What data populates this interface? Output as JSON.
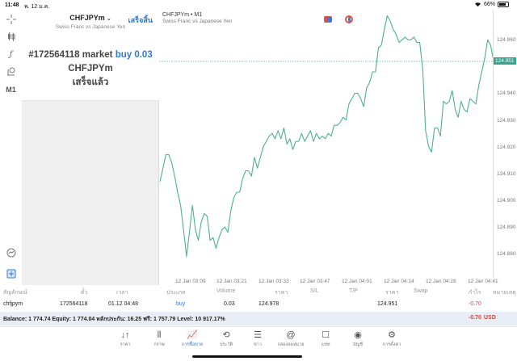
{
  "status_bar": {
    "time": "11:48",
    "date": "พ. 12 ม.ค.",
    "battery": "66%"
  },
  "tool_rail": {
    "items": [
      {
        "name": "crosshair-icon",
        "glyph": "⌖"
      },
      {
        "name": "indicators-icon",
        "glyph": "⫴"
      },
      {
        "name": "function-icon",
        "glyph": "ƒ"
      },
      {
        "name": "objects-icon",
        "glyph": "⚲"
      },
      {
        "name": "timeframe",
        "glyph": "M1"
      }
    ],
    "bottom_items": [
      {
        "name": "trade-signal-icon",
        "glyph": "◎"
      },
      {
        "name": "new-order-icon",
        "glyph": "⊞"
      }
    ]
  },
  "order_panel": {
    "symbol": "CHFJPYm",
    "chevron": "⌄",
    "description": "Swiss Franc vs Japanese Yen",
    "done_label": "เสร็จสิ้น",
    "result_prefix": "#172564118 market",
    "result_action": "buy 0.03",
    "result_symbol": "CHFJPYm",
    "result_status": "เสร็จแล้ว"
  },
  "chart": {
    "header_title": "CHFJPYm • M1",
    "header_desc": "Swiss Franc vs Japanese Yen",
    "current_price": "124.951",
    "line_color": "#4fb08f"
  },
  "chart_data": {
    "type": "line",
    "title": "CHFJPYm • M1",
    "subtitle": "Swiss Franc vs Japanese Yen",
    "xlabel": "",
    "ylabel": "",
    "x_ticks": [
      "12 Jan 03:09",
      "12 Jan 03:21",
      "12 Jan 03:33",
      "12 Jan 03:47",
      "12 Jan 04:01",
      "12 Jan 04:14",
      "12 Jan 04:28",
      "12 Jan 04:41"
    ],
    "y_ticks": [
      "124.960",
      "124.950",
      "124.940",
      "124.930",
      "124.920",
      "124.910",
      "124.900",
      "124.890",
      "124.880"
    ],
    "ylim": [
      124.875,
      124.965
    ],
    "grid": false,
    "current_price_line": 124.951,
    "series": [
      {
        "name": "CHFJPYm close",
        "values": [
          124.906,
          124.911,
          124.916,
          124.916,
          124.913,
          124.908,
          124.902,
          124.897,
          124.888,
          124.878,
          124.887,
          124.897,
          124.888,
          124.884,
          124.891,
          124.894,
          124.893,
          124.884,
          124.885,
          124.881,
          124.885,
          124.888,
          124.889,
          124.887,
          124.895,
          124.9,
          124.902,
          124.902,
          124.907,
          124.91,
          124.91,
          124.908,
          124.915,
          124.911,
          124.915,
          124.919,
          124.921,
          124.923,
          124.924,
          124.922,
          124.925,
          124.922,
          124.926,
          124.92,
          124.922,
          124.918,
          124.921,
          124.921,
          124.924,
          124.921,
          124.923,
          124.925,
          124.921,
          124.924,
          124.922,
          124.923,
          124.922,
          124.924,
          124.923,
          124.927,
          124.927,
          124.928,
          124.93,
          124.929,
          124.935,
          124.937,
          124.939,
          124.939,
          124.937,
          124.934,
          124.941,
          124.943,
          124.947,
          124.947,
          124.956,
          124.957,
          124.963,
          124.968,
          124.966,
          124.963,
          124.961,
          124.958,
          124.959,
          124.96,
          124.959,
          124.959,
          124.96,
          124.958,
          124.958,
          124.948,
          124.925,
          124.919,
          124.917,
          124.926,
          124.926,
          124.923,
          124.936,
          124.935,
          124.936,
          124.94,
          124.933,
          124.93,
          124.936,
          124.933,
          124.932,
          124.937,
          124.936,
          124.935,
          124.942,
          124.947,
          124.952,
          124.959,
          124.957,
          124.951
        ]
      }
    ]
  },
  "positions_table": {
    "headers": [
      "สัญลักษณ์",
      "ตั๋ว",
      "เวลา",
      "ประเภท",
      "Volume",
      "ราคา",
      "S/L",
      "T/P",
      "ราคา",
      "Swap",
      "กำไร",
      "หมายเหตุ"
    ],
    "rows": [
      {
        "symbol": "chfjpym",
        "ticket": "172564118",
        "time": "01.12 04:48",
        "type": "buy",
        "volume": "0.03",
        "open_price": "124.978",
        "sl": "",
        "tp": "",
        "price": "124.951",
        "swap": "",
        "profit": "-0.70",
        "comment": ""
      }
    ],
    "balance_line": "Balance: 1 774.74 Equity: 1 774.04 หลักประกัน: 16.25 ฟรี: 1 757.79 Level: 10 917.17%",
    "total_profit": "-0.70",
    "currency": "USD"
  },
  "tab_bar": {
    "tabs": [
      {
        "label": "ราคา",
        "icon": "↓↑",
        "name": "tab-quotes"
      },
      {
        "label": "กราฟ",
        "icon": "⫴",
        "name": "tab-chart"
      },
      {
        "label": "การซื้อขาย",
        "icon": "📈",
        "name": "tab-trade",
        "active": true
      },
      {
        "label": "ประวัติ",
        "icon": "⟲",
        "name": "tab-history"
      },
      {
        "label": "ข่าว",
        "icon": "☰",
        "name": "tab-news"
      },
      {
        "label": "กล่องจดหมาย",
        "icon": "@",
        "name": "tab-mailbox"
      },
      {
        "label": "แชท",
        "icon": "☐",
        "name": "tab-chat"
      },
      {
        "label": "บัญชี",
        "icon": "◉",
        "name": "tab-account"
      },
      {
        "label": "การตั้งค่า",
        "icon": "⚙",
        "name": "tab-settings"
      }
    ]
  }
}
